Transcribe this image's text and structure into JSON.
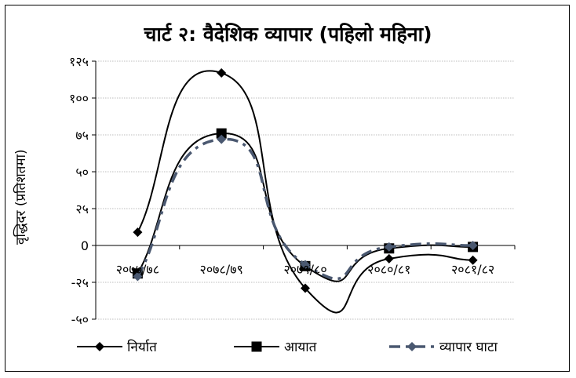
{
  "chart_data": {
    "type": "line",
    "title": "चार्ट २: वैदेशिक व्यापार (पहिलो महिना)",
    "ylabel": "वृद्धिदर (प्रतिशतमा)",
    "xlabel": "",
    "categories": [
      "२०७७/७८",
      "२०७८/७९",
      "२०७९/८०",
      "२०८०/८१",
      "२०८१/८२"
    ],
    "ylim": [
      -50,
      125
    ],
    "yticks": [
      125,
      100,
      75,
      50,
      25,
      0,
      -25,
      -50
    ],
    "ytick_labels": [
      "१२५",
      "१००",
      "७५",
      "५०",
      "२५",
      "0",
      "-२५",
      "-५०"
    ],
    "grid": true,
    "legend_position": "bottom",
    "series": [
      {
        "name": "निर्यात",
        "values": [
          9,
          117,
          -29,
          -9,
          -10
        ],
        "color": "#000000",
        "marker": "diamond",
        "dash": "solid"
      },
      {
        "name": "आयात",
        "values": [
          -19,
          76,
          -14,
          -2,
          -1
        ],
        "color": "#000000",
        "marker": "square",
        "dash": "solid"
      },
      {
        "name": "व्यापार घाटा",
        "values": [
          -21,
          72,
          -13,
          -1,
          0
        ],
        "color": "#4a5870",
        "marker": "diamond",
        "dash": "dashed"
      }
    ]
  }
}
